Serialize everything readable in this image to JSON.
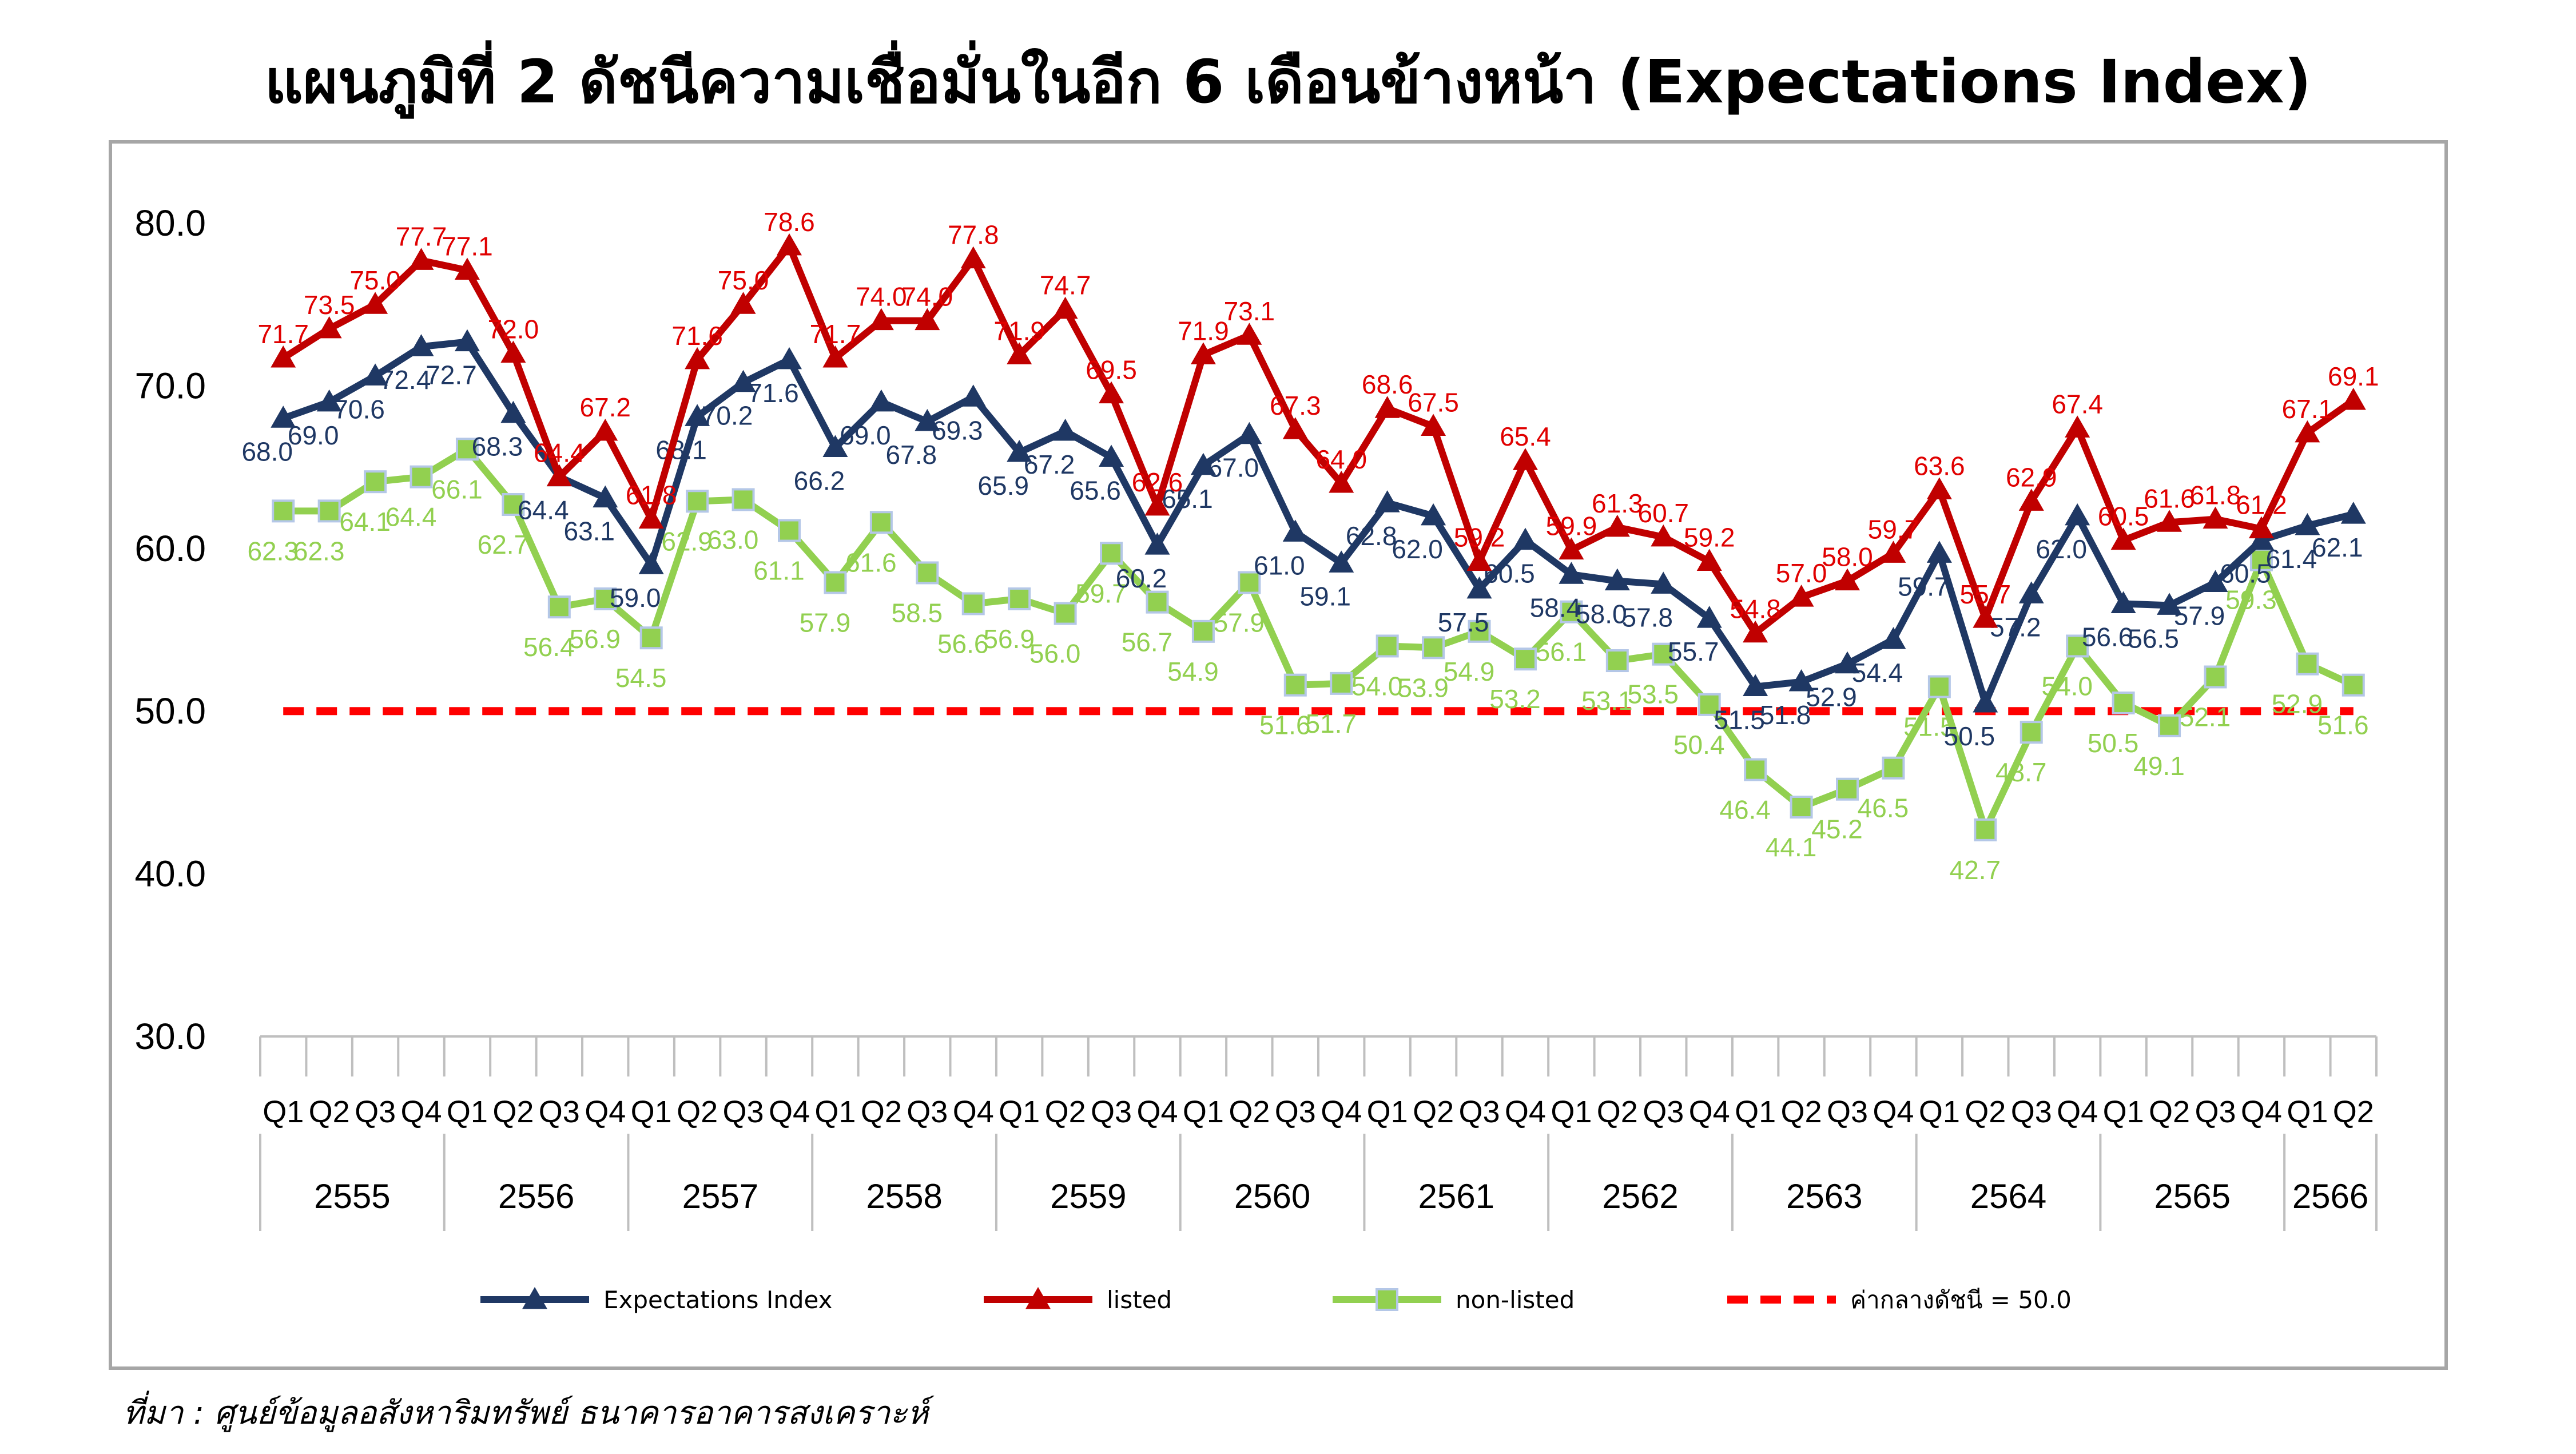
{
  "chart_data": {
    "type": "line",
    "title": "แผนภูมิที่ 2 ดัชนีความเชื่อมั่นในอีก 6 เดือนข้างหน้า (Expectations Index)",
    "source": "ที่มา : ศูนย์ข้อมูลอสังหาริมทรัพย์ ธนาคารอาคารสงเคราะห์",
    "ylim": [
      30,
      80
    ],
    "yticks": [
      "30.0",
      "40.0",
      "50.0",
      "60.0",
      "70.0",
      "80.0"
    ],
    "quarters": [
      "Q1",
      "Q2",
      "Q3",
      "Q4",
      "Q1",
      "Q2",
      "Q3",
      "Q4",
      "Q1",
      "Q2",
      "Q3",
      "Q4",
      "Q1",
      "Q2",
      "Q3",
      "Q4",
      "Q1",
      "Q2",
      "Q3",
      "Q4",
      "Q1",
      "Q2",
      "Q3",
      "Q4",
      "Q1",
      "Q2",
      "Q3",
      "Q4",
      "Q1",
      "Q2",
      "Q3",
      "Q4",
      "Q1",
      "Q2",
      "Q3",
      "Q4",
      "Q1",
      "Q2",
      "Q3",
      "Q4",
      "Q1",
      "Q2",
      "Q3",
      "Q4",
      "Q1",
      "Q2"
    ],
    "years": [
      {
        "label": "2555",
        "count": 4
      },
      {
        "label": "2556",
        "count": 4
      },
      {
        "label": "2557",
        "count": 4
      },
      {
        "label": "2558",
        "count": 4
      },
      {
        "label": "2559",
        "count": 4
      },
      {
        "label": "2560",
        "count": 4
      },
      {
        "label": "2561",
        "count": 4
      },
      {
        "label": "2562",
        "count": 4
      },
      {
        "label": "2563",
        "count": 4
      },
      {
        "label": "2564",
        "count": 4
      },
      {
        "label": "2565",
        "count": 4
      },
      {
        "label": "2566",
        "count": 2
      }
    ],
    "series": [
      {
        "name": "Expectations Index",
        "color": "#1f3864",
        "marker": "triangle",
        "values": [
          68.0,
          69.0,
          70.6,
          72.4,
          72.7,
          68.3,
          64.4,
          63.1,
          59.0,
          68.1,
          70.2,
          71.6,
          66.2,
          69.0,
          67.8,
          69.3,
          65.9,
          67.2,
          65.6,
          60.2,
          65.1,
          67.0,
          61.0,
          59.1,
          62.8,
          62.0,
          57.5,
          60.5,
          58.4,
          58.0,
          57.8,
          55.7,
          51.5,
          51.8,
          52.9,
          54.4,
          59.7,
          50.5,
          57.2,
          62.0,
          56.6,
          56.5,
          57.9,
          60.5,
          61.4,
          62.1
        ]
      },
      {
        "name": "listed",
        "color": "#c00000",
        "marker": "triangle",
        "values": [
          71.7,
          73.5,
          75.0,
          77.7,
          77.1,
          72.0,
          64.4,
          67.2,
          61.8,
          71.6,
          75.0,
          78.6,
          71.7,
          74.0,
          74.0,
          77.8,
          71.9,
          74.7,
          69.5,
          62.6,
          71.9,
          73.1,
          67.3,
          64.0,
          68.6,
          67.5,
          59.2,
          65.4,
          59.9,
          61.3,
          60.7,
          59.2,
          54.8,
          57.0,
          58.0,
          59.7,
          63.6,
          55.7,
          62.9,
          67.4,
          60.5,
          61.6,
          61.8,
          61.2,
          67.1,
          69.1
        ]
      },
      {
        "name": "non-listed",
        "color": "#92d050",
        "marker": "square",
        "values": [
          62.3,
          62.3,
          64.1,
          64.4,
          66.1,
          62.7,
          56.4,
          56.9,
          54.5,
          62.9,
          63.0,
          61.1,
          57.9,
          61.6,
          58.5,
          56.6,
          56.9,
          56.0,
          59.7,
          56.7,
          54.9,
          57.9,
          51.6,
          51.7,
          54.0,
          53.9,
          54.9,
          53.2,
          56.1,
          53.1,
          53.5,
          50.4,
          46.4,
          44.1,
          45.2,
          46.5,
          51.5,
          42.7,
          48.7,
          54.0,
          50.5,
          49.1,
          52.1,
          59.3,
          52.9,
          51.6
        ]
      },
      {
        "name": "ค่ากลางดัชนี = 50.0",
        "color": "#ff0000",
        "marker": "none",
        "dashed": true,
        "values": [
          50,
          50,
          50,
          50,
          50,
          50,
          50,
          50,
          50,
          50,
          50,
          50,
          50,
          50,
          50,
          50,
          50,
          50,
          50,
          50,
          50,
          50,
          50,
          50,
          50,
          50,
          50,
          50,
          50,
          50,
          50,
          50,
          50,
          50,
          50,
          50,
          50,
          50,
          50,
          50,
          50,
          50,
          50,
          50,
          50,
          50
        ]
      }
    ],
    "legend_position": "bottom",
    "grid": false
  }
}
